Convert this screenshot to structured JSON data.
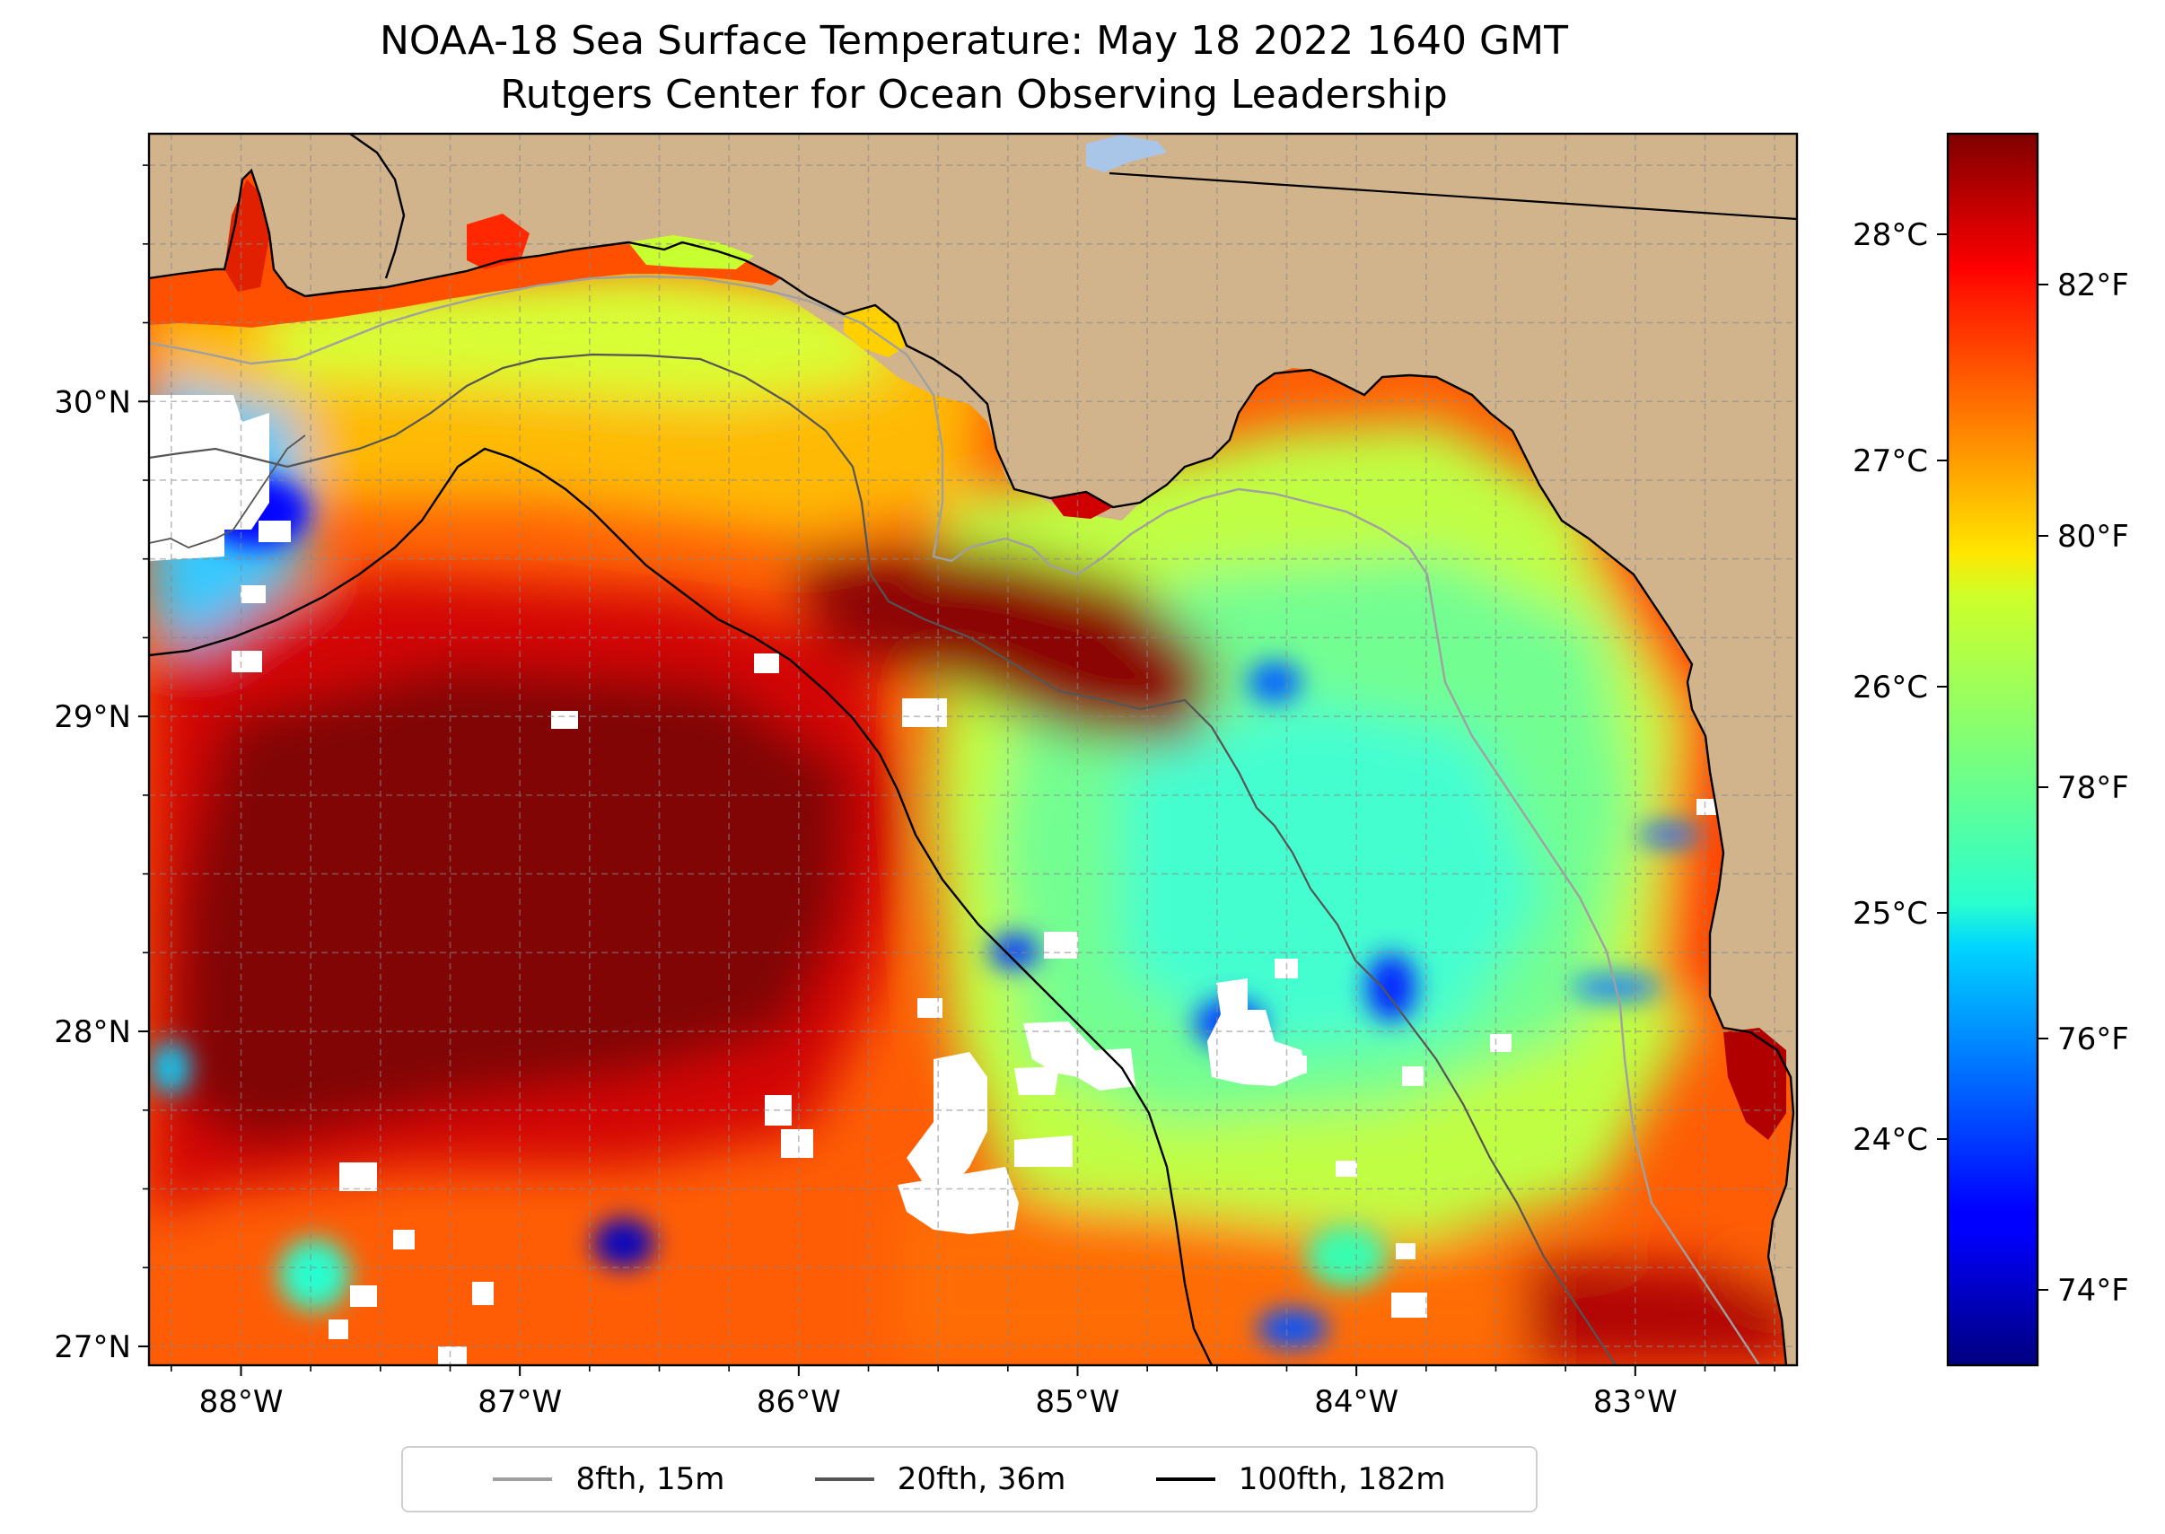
{
  "title": "NOAA-18 Sea Surface Temperature: May 18 2022 1640 GMT",
  "subtitle": "Rutgers Center for Ocean Observing Leadership",
  "map": {
    "projection": "lat-lon",
    "lon_range": [
      -88.33,
      -82.42
    ],
    "lat_range": [
      26.94,
      30.85
    ],
    "lon_ticks": [
      {
        "value": -88,
        "label": "88°W"
      },
      {
        "value": -87,
        "label": "87°W"
      },
      {
        "value": -86,
        "label": "86°W"
      },
      {
        "value": -85,
        "label": "85°W"
      },
      {
        "value": -84,
        "label": "84°W"
      },
      {
        "value": -83,
        "label": "83°W"
      }
    ],
    "lat_ticks": [
      {
        "value": 27,
        "label": "27°N"
      },
      {
        "value": 28,
        "label": "28°N"
      },
      {
        "value": 29,
        "label": "29°N"
      },
      {
        "value": 30,
        "label": "30°N"
      }
    ],
    "land_color": "#d2b48c",
    "grid": "dashed gray lines every 0.25°"
  },
  "colorbar": {
    "colormap": "jet",
    "range_f": [
      73.4,
      83.2
    ],
    "fahrenheit_ticks": [
      {
        "value": 74,
        "label": "74°F"
      },
      {
        "value": 76,
        "label": "76°F"
      },
      {
        "value": 78,
        "label": "78°F"
      },
      {
        "value": 80,
        "label": "80°F"
      },
      {
        "value": 82,
        "label": "82°F"
      }
    ],
    "celsius_ticks": [
      {
        "value": 24,
        "label": "24°C"
      },
      {
        "value": 25,
        "label": "25°C"
      },
      {
        "value": 26,
        "label": "26°C"
      },
      {
        "value": 27,
        "label": "27°C"
      },
      {
        "value": 28,
        "label": "28°C"
      }
    ]
  },
  "legend": [
    {
      "label": "8fth, 15m",
      "color": "#a0a0a0"
    },
    {
      "label": "20fth, 36m",
      "color": "#555555"
    },
    {
      "label": "100fth, 182m",
      "color": "#000000"
    }
  ]
}
